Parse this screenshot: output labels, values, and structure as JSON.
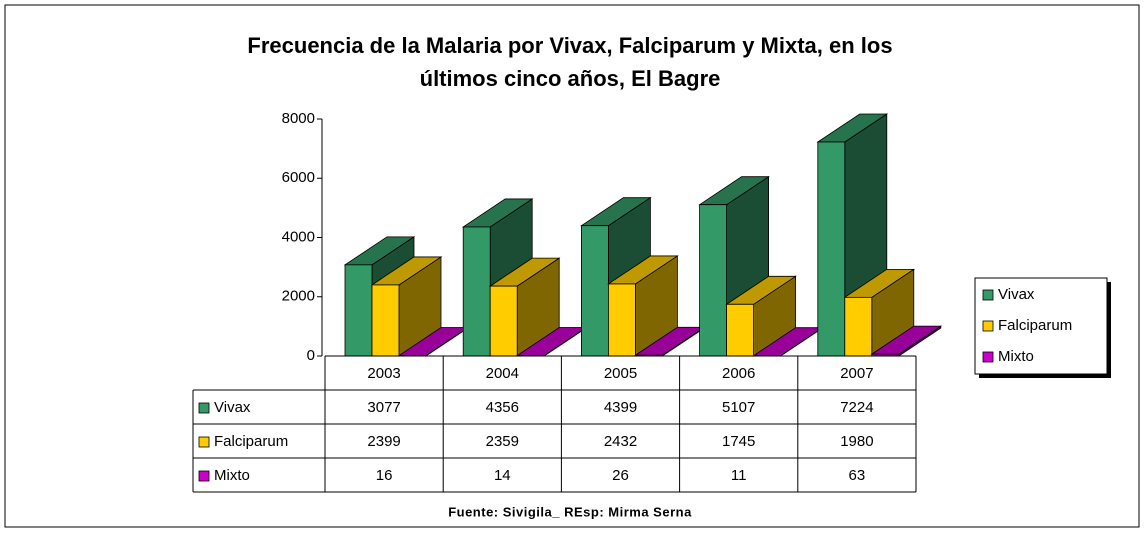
{
  "chart_data": {
    "type": "bar3d",
    "title": [
      "Frecuencia de la Malaria por Vivax, Falciparum y Mixta, en los",
      "últimos cinco años, El Bagre"
    ],
    "categories": [
      "2003",
      "2004",
      "2005",
      "2006",
      "2007"
    ],
    "series": [
      {
        "name": "Vivax",
        "color": "#339966",
        "values": [
          3077,
          4356,
          4399,
          5107,
          7224
        ]
      },
      {
        "name": "Falciparum",
        "color": "#ffcc00",
        "values": [
          2399,
          2359,
          2432,
          1745,
          1980
        ]
      },
      {
        "name": "Mixto",
        "color": "#cc00cc",
        "values": [
          16,
          14,
          26,
          11,
          63
        ]
      }
    ],
    "ylim": [
      0,
      8000
    ],
    "yticks": [
      0,
      2000,
      4000,
      6000,
      8000
    ],
    "legend": "right",
    "source": "Fuente: Sivigila_ REsp: Mirma Serna"
  }
}
